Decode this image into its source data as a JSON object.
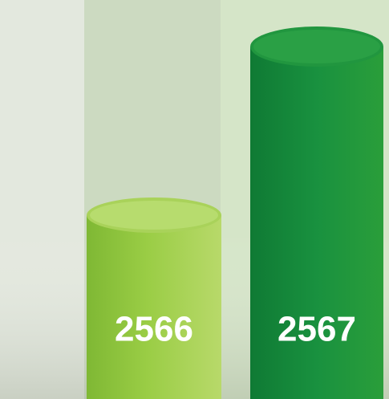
{
  "bars": [
    {
      "label": "2566"
    },
    {
      "label": "2567"
    }
  ]
}
